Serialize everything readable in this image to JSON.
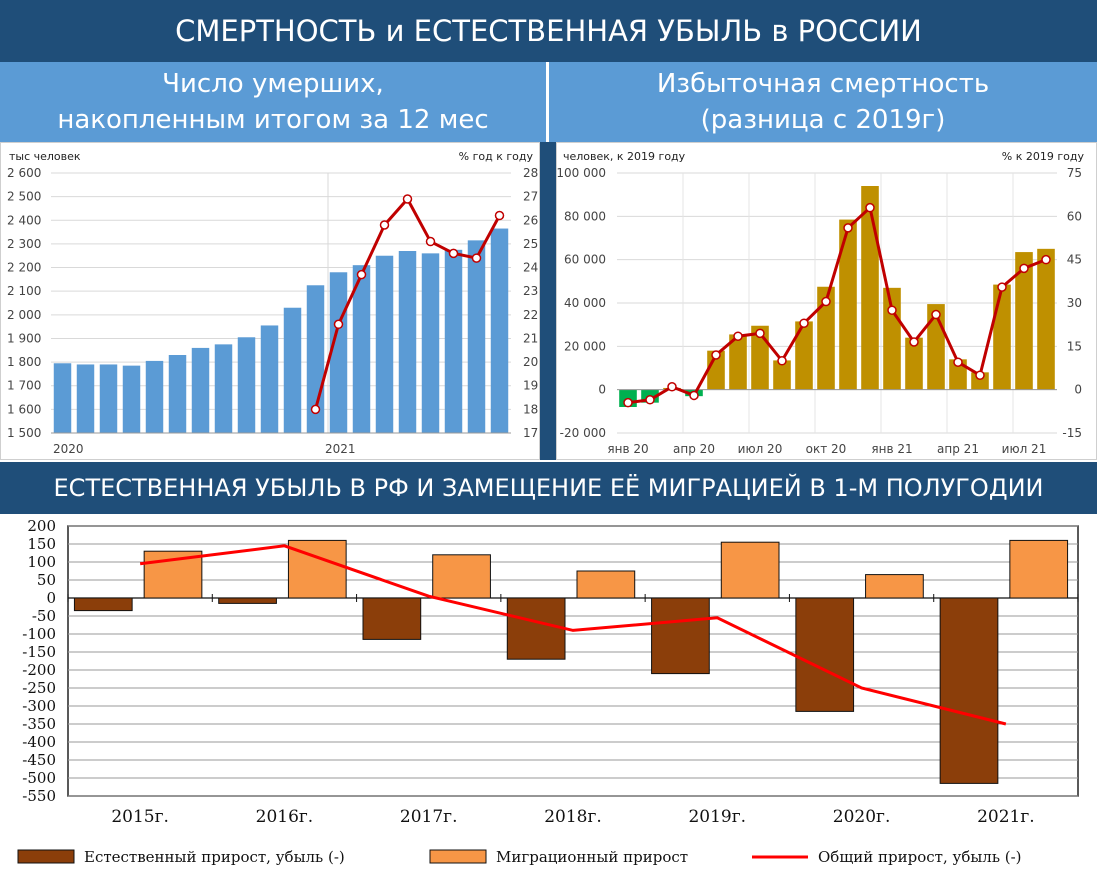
{
  "header": {
    "title": "СМЕРТНОСТЬ и ЕСТЕСТВЕННАЯ УБЫЛЬ в РОССИИ",
    "left_subtitle_line1": "Число умерших,",
    "left_subtitle_line2": "накопленным итогом за 12 мес",
    "right_subtitle_line1": "Избыточная смертность",
    "right_subtitle_line2": "(разница с 2019г)",
    "section_title": "ЕСТЕСТВЕННАЯ УБЫЛЬ В РФ И ЗАМЕЩЕНИЕ ЕЁ МИГРАЦИЕЙ В 1-М ПОЛУГОДИИ"
  },
  "colors": {
    "banner": "#1f4e79",
    "subhead": "#5b9bd5",
    "blue_bar": "#5b9bd5",
    "gold_bar": "#bf9000",
    "green_bar": "#00b050",
    "red_line": "#c00000",
    "brown_bar": "#8b3e0a",
    "orange_bar": "#f79646",
    "total_line": "#ff0000"
  },
  "chart_data": [
    {
      "type": "bar",
      "left_axis_label": "тыс человек",
      "right_axis_label": "% год к году",
      "ylim": [
        1500,
        2600
      ],
      "y_ticks": [
        "1 500",
        "1 600",
        "1 700",
        "1 800",
        "1 900",
        "2 000",
        "2 100",
        "2 200",
        "2 300",
        "2 400",
        "2 500",
        "2 600"
      ],
      "y2lim": [
        17,
        28
      ],
      "y2_ticks": [
        "17",
        "18",
        "19",
        "20",
        "21",
        "22",
        "23",
        "24",
        "25",
        "26",
        "27",
        "28"
      ],
      "x_labels": [
        "2020",
        "2021"
      ],
      "values": [
        1795,
        1790,
        1790,
        1785,
        1805,
        1830,
        1860,
        1875,
        1905,
        1955,
        2030,
        2125,
        2180,
        2210,
        2250,
        2270,
        2260,
        2275,
        2315,
        2365
      ],
      "line_series": {
        "values": [
          null,
          null,
          null,
          null,
          null,
          null,
          null,
          null,
          null,
          null,
          null,
          18.0,
          21.6,
          23.7,
          25.8,
          26.9,
          25.1,
          24.6,
          24.4,
          26.2
        ]
      },
      "grid": true
    },
    {
      "type": "bar",
      "left_axis_label": "человек, к 2019 году",
      "right_axis_label": "% к 2019 году",
      "ylim": [
        -20000,
        100000
      ],
      "y_ticks": [
        "-20 000",
        "0",
        "20 000",
        "40 000",
        "60 000",
        "80 000",
        "100 000"
      ],
      "y2lim": [
        -15,
        75
      ],
      "y2_ticks": [
        "-15",
        "0",
        "15",
        "30",
        "45",
        "60",
        "75"
      ],
      "x_labels": [
        "янв 20",
        "апр 20",
        "июл 20",
        "окт 20",
        "янв 21",
        "апр 21",
        "июл 21"
      ],
      "values": [
        -8000,
        -6000,
        800,
        -3000,
        18000,
        25500,
        29500,
        13500,
        31500,
        47500,
        78500,
        94000,
        47000,
        24000,
        39500,
        14000,
        8000,
        48500,
        63500,
        65000
      ],
      "line_series": {
        "values": [
          -4.5,
          -3.5,
          1,
          -2,
          12,
          18.5,
          19.5,
          10,
          23,
          30.5,
          56,
          63,
          27.5,
          16.5,
          26,
          9.5,
          5,
          35.5,
          42,
          45
        ]
      },
      "grid": true
    },
    {
      "type": "bar",
      "ylim": [
        -550,
        200
      ],
      "y_ticks": [
        "200",
        "150",
        "100",
        "50",
        "0",
        "-50",
        "-100",
        "-150",
        "-200",
        "-250",
        "-300",
        "-350",
        "-400",
        "-450",
        "-500",
        "-550"
      ],
      "categories": [
        "2015г.",
        "2016г.",
        "2017г.",
        "2018г.",
        "2019г.",
        "2020г.",
        "2021г."
      ],
      "series": [
        {
          "name": "Естественный прирост, убыль (-)",
          "values": [
            -35,
            -15,
            -115,
            -170,
            -210,
            -315,
            -515
          ]
        },
        {
          "name": "Миграционный прирост",
          "values": [
            130,
            160,
            120,
            75,
            155,
            65,
            160
          ]
        },
        {
          "name": "Общий прирост, убыль (-)",
          "values": [
            95,
            145,
            5,
            -90,
            -55,
            -250,
            -350
          ]
        }
      ],
      "legend": "bottom",
      "grid": true
    }
  ]
}
